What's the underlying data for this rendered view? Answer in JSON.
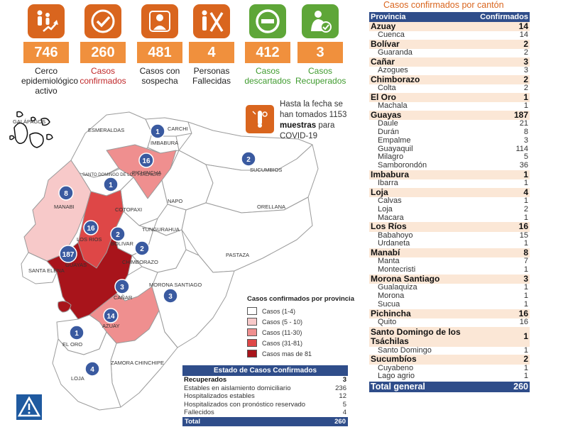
{
  "stats": [
    {
      "icon": "family-growth-icon",
      "value": "746",
      "label_lines": [
        "Cerco",
        "epidemiológico",
        "activo"
      ],
      "style": "orange"
    },
    {
      "icon": "check-circle-icon",
      "value": "260",
      "label_lines": [
        "Casos",
        "confirmados"
      ],
      "style": "red"
    },
    {
      "icon": "medical-doctor-icon",
      "value": "481",
      "label_lines": [
        "Casos con",
        "sospecha"
      ],
      "style": "orange"
    },
    {
      "icon": "people-x-icon",
      "value": "4",
      "label_lines": [
        "Personas",
        "Fallecidas"
      ],
      "style": "orange"
    },
    {
      "icon": "minus-circle-icon",
      "value": "412",
      "label_lines": [
        "Casos",
        "descartados"
      ],
      "style": "green"
    },
    {
      "icon": "recovered-person-icon",
      "value": "3",
      "label_lines": [
        "Casos",
        "Recuperados"
      ],
      "style": "green"
    }
  ],
  "note": {
    "pre": "Hasta la fecha se han tomados 1153",
    "bold": "muestras",
    "post": "para COVID-19"
  },
  "map": {
    "province_labels": [
      "GALÁPAGOS",
      "ESMERALDAS",
      "CARCHI",
      "IMBABURA",
      "PICHINCHA",
      "SUCUMBIOS",
      "SANTO DOMINGO DE LOS TSÁCHILAS",
      "NAPO",
      "ORELLANA",
      "MANABI",
      "COTOPAXI",
      "TUNGURAHUA",
      "LOS RIOS",
      "BOLIVAR",
      "PASTAZA",
      "CHIMBORAZO",
      "SANTA ELENA",
      "GUAYAS",
      "MORONA SANTIAGO",
      "CAÑAR",
      "AZUAY",
      "EL ORO",
      "ZAMORA CHINCHIPE",
      "LOJA"
    ],
    "markers": [
      "1",
      "16",
      "2",
      "1",
      "8",
      "16",
      "2",
      "187",
      "2",
      "3",
      "3",
      "14",
      "1",
      "4"
    ],
    "colors": {
      "c1": "#ffffff",
      "c2": "#f7c9c9",
      "c3": "#ef8f8f",
      "c4": "#de4747",
      "c5": "#a8141b",
      "border": "#9b9b9b",
      "marker": "#3a5aa0"
    }
  },
  "legend": {
    "title": "Casos confirmados por provincia",
    "items": [
      {
        "label": "Casos (1-4)",
        "color": "#ffffff"
      },
      {
        "label": "Casos (5 - 10)",
        "color": "#f7c9c9"
      },
      {
        "label": "Casos (11-30)",
        "color": "#ef8f8f"
      },
      {
        "label": "Casos (31-81)",
        "color": "#de4747"
      },
      {
        "label": "Casos mas de 81",
        "color": "#a8141b"
      }
    ]
  },
  "estado": {
    "title": "Estado de Casos Confirmados",
    "rows": [
      {
        "label": "Recuperados",
        "value": "3"
      },
      {
        "label": "Estables en aislamiento domiciliario",
        "value": "236"
      },
      {
        "label": "Hospitalizados estables",
        "value": "12"
      },
      {
        "label": "Hospitalizados con pronóstico reservado",
        "value": "5"
      },
      {
        "label": "Fallecidos",
        "value": "4"
      }
    ],
    "total_label": "Total",
    "total_value": "260"
  },
  "canton_table": {
    "title": "Casos confirmados por cantón",
    "header": {
      "province": "Provincia",
      "confirmed": "Confirmados"
    },
    "groups": [
      {
        "province": "Azuay",
        "total": "14",
        "cantons": [
          {
            "name": "Cuenca",
            "value": "14"
          }
        ]
      },
      {
        "province": "Bolívar",
        "total": "2",
        "cantons": [
          {
            "name": "Guaranda",
            "value": "2"
          }
        ]
      },
      {
        "province": "Cañar",
        "total": "3",
        "cantons": [
          {
            "name": "Azogues",
            "value": "3"
          }
        ]
      },
      {
        "province": "Chimborazo",
        "total": "2",
        "cantons": [
          {
            "name": "Colta",
            "value": "2"
          }
        ]
      },
      {
        "province": "El Oro",
        "total": "1",
        "cantons": [
          {
            "name": "Machala",
            "value": "1"
          }
        ]
      },
      {
        "province": "Guayas",
        "total": "187",
        "cantons": [
          {
            "name": "Daule",
            "value": "21"
          },
          {
            "name": "Durán",
            "value": "8"
          },
          {
            "name": "Empalme",
            "value": "3"
          },
          {
            "name": "Guayaquil",
            "value": "114"
          },
          {
            "name": "Milagro",
            "value": "5"
          },
          {
            "name": "Samborondón",
            "value": "36"
          }
        ]
      },
      {
        "province": "Imbabura",
        "total": "1",
        "cantons": [
          {
            "name": "Ibarra",
            "value": "1"
          }
        ]
      },
      {
        "province": "Loja",
        "total": "4",
        "cantons": [
          {
            "name": "Calvas",
            "value": "1"
          },
          {
            "name": "Loja",
            "value": "2"
          },
          {
            "name": "Macara",
            "value": "1"
          }
        ]
      },
      {
        "province": "Los Ríos",
        "total": "16",
        "cantons": [
          {
            "name": "Babahoyo",
            "value": "15"
          },
          {
            "name": "Urdaneta",
            "value": "1"
          }
        ]
      },
      {
        "province": "Manabí",
        "total": "8",
        "cantons": [
          {
            "name": "Manta",
            "value": "7"
          },
          {
            "name": "Montecristi",
            "value": "1"
          }
        ]
      },
      {
        "province": "Morona Santiago",
        "total": "3",
        "cantons": [
          {
            "name": "Gualaquiza",
            "value": "1"
          },
          {
            "name": "Morona",
            "value": "1"
          },
          {
            "name": "Sucua",
            "value": "1"
          }
        ]
      },
      {
        "province": "Pichincha",
        "total": "16",
        "cantons": [
          {
            "name": "Quito",
            "value": "16"
          }
        ]
      },
      {
        "province": "Santo Domingo de los Tsáchilas",
        "total": "1",
        "cantons": [
          {
            "name": "Santo Domingo",
            "value": "1"
          }
        ]
      },
      {
        "province": "Sucumbíos",
        "total": "2",
        "cantons": [
          {
            "name": "Cuyabeno",
            "value": "1"
          },
          {
            "name": "Lago agrio",
            "value": "1"
          }
        ]
      }
    ],
    "total_label": "Total general",
    "total_value": "260"
  },
  "logo_icon": "institution-logo-icon"
}
